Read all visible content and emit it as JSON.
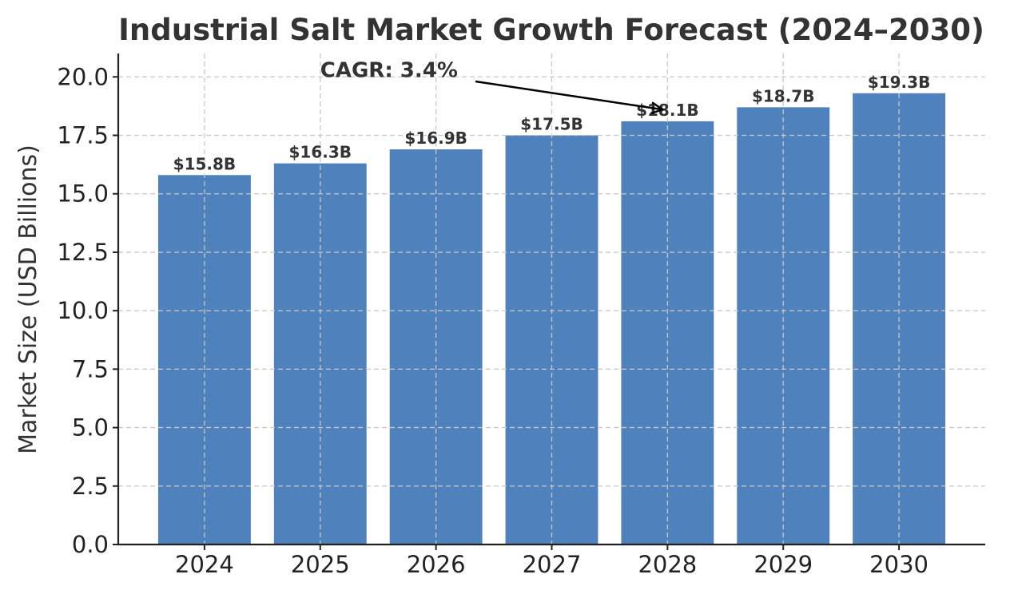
{
  "chart_data": {
    "type": "bar",
    "title": "Industrial Salt Market Growth Forecast (2024–2030)",
    "xlabel": "",
    "ylabel": "Market Size (USD Billions)",
    "categories": [
      "2024",
      "2025",
      "2026",
      "2027",
      "2028",
      "2029",
      "2030"
    ],
    "values": [
      15.8,
      16.3,
      16.9,
      17.5,
      18.1,
      18.7,
      19.3
    ],
    "data_labels": [
      "$15.8B",
      "$16.3B",
      "$16.9B",
      "$17.5B",
      "$18.1B",
      "$18.7B",
      "$19.3B"
    ],
    "ylim": [
      0,
      21
    ],
    "yticks": [
      "0.0",
      "2.5",
      "5.0",
      "7.5",
      "10.0",
      "12.5",
      "15.0",
      "17.5",
      "20.0"
    ],
    "grid": true,
    "bar_color": "#4f81bd",
    "annotation": {
      "text": "CAGR: 3.4%",
      "text_position": {
        "category": "2025",
        "value": 20.0
      },
      "arrow_target": {
        "category": "2028",
        "value": 18.6
      }
    }
  }
}
